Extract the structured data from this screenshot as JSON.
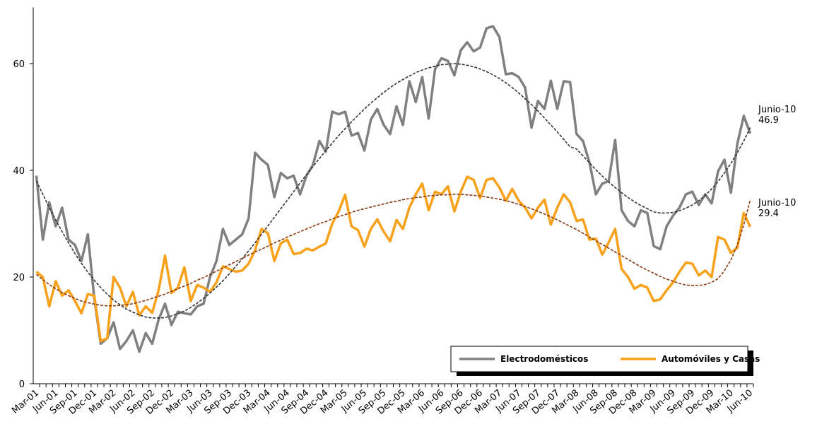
{
  "chart_data": {
    "type": "line",
    "categories": [
      "Mar-01",
      null,
      null,
      "Jun-01",
      null,
      null,
      "Sep-01",
      null,
      null,
      "Dec-01",
      null,
      null,
      "Mar-02",
      null,
      null,
      "Jun-02",
      null,
      null,
      "Sep-02",
      null,
      null,
      "Dec-02",
      null,
      null,
      "Mar-03",
      null,
      null,
      "Jun-03",
      null,
      null,
      "Sep-03",
      null,
      null,
      "Dec-03",
      null,
      null,
      "Mar-04",
      null,
      null,
      "Jun-04",
      null,
      null,
      "Sep-04",
      null,
      null,
      "Dec-04",
      null,
      null,
      "Mar-05",
      null,
      null,
      "Jun-05",
      null,
      null,
      "Sep-05",
      null,
      null,
      "Dec-05",
      null,
      null,
      "Mar-06",
      null,
      null,
      "Jun-06",
      null,
      null,
      "Sep-06",
      null,
      null,
      "Dec-06",
      null,
      null,
      "Mar-07",
      null,
      null,
      "Jun-07",
      null,
      null,
      "Sep-07",
      null,
      null,
      "Dec-07",
      null,
      null,
      "Mar-08",
      null,
      null,
      "Jun-08",
      null,
      null,
      "Sep-08",
      null,
      null,
      "Dec-08",
      null,
      null,
      "Mar-09",
      null,
      null,
      "Jun-09",
      null,
      null,
      "Sep-09",
      null,
      null,
      "Dec-09",
      null,
      null,
      "Mar-10",
      null,
      null,
      "Jun-10"
    ],
    "series": [
      {
        "name": "Electrodomésticos",
        "color": "#808080",
        "values": [
          39,
          27,
          34,
          29.5,
          33,
          27,
          26,
          23,
          28,
          16,
          7.5,
          8.5,
          11.5,
          6.5,
          8,
          10,
          6,
          9.5,
          7.5,
          12,
          15,
          11,
          13.5,
          13.2,
          13,
          14.5,
          15,
          20,
          23,
          29,
          26,
          27,
          28,
          31,
          43.3,
          42,
          41,
          35,
          39.5,
          38.5,
          39,
          35.5,
          39,
          41,
          45.5,
          43.5,
          51,
          50.5,
          51,
          46.5,
          47,
          43.7,
          49.5,
          51.5,
          48.5,
          46.8,
          52,
          48.5,
          56.7,
          52.8,
          57.5,
          49.7,
          59,
          61,
          60.5,
          57.8,
          62.5,
          64,
          62.3,
          63,
          66.6,
          67,
          65,
          58,
          58.2,
          57.5,
          55.5,
          48,
          53,
          51.5,
          56.8,
          51.5,
          56.7,
          56.5,
          46.8,
          45.5,
          41.5,
          35.5,
          37.5,
          38,
          45.7,
          32.5,
          30.5,
          29.5,
          32.5,
          32,
          25.8,
          25.2,
          29.5,
          31.5,
          33,
          35.5,
          36,
          33.5,
          35.5,
          33.8,
          39.8,
          42,
          35.8,
          45,
          50.2,
          46.9
        ]
      },
      {
        "name": "Automóviles y Casas",
        "color": "#f9a11b",
        "values": [
          21,
          20,
          14.5,
          19.2,
          16.5,
          17.5,
          15.5,
          13.2,
          16.8,
          16.5,
          8,
          8.5,
          20,
          18,
          14.5,
          17.2,
          12.8,
          14.5,
          13.3,
          17.5,
          24,
          17,
          18,
          21.8,
          15.5,
          18.5,
          18,
          17.2,
          19,
          22,
          21.5,
          21,
          21.2,
          22.5,
          25,
          29,
          28.2,
          23,
          26.3,
          27,
          24.3,
          24.5,
          25.3,
          25,
          25.7,
          26.3,
          30,
          32.3,
          35.4,
          29.5,
          28.8,
          25.7,
          29,
          30.8,
          28.5,
          26.7,
          30.7,
          29,
          33,
          35.5,
          37.5,
          32.5,
          36,
          35.5,
          37,
          32.3,
          36,
          38.8,
          38.2,
          34.8,
          38.2,
          38.5,
          36.8,
          34.3,
          36.5,
          34.3,
          33,
          31,
          33,
          34.5,
          29.8,
          33,
          35.5,
          34,
          30.5,
          30.8,
          27,
          27.2,
          24.2,
          26.5,
          29,
          21.5,
          20,
          17.8,
          18.5,
          18,
          15.5,
          15.8,
          17.5,
          19,
          21,
          22.7,
          22.5,
          20.3,
          21.2,
          20,
          27.5,
          27,
          24.5,
          25.5,
          32,
          29.4
        ]
      }
    ],
    "trendlines": [
      {
        "color": "#333333",
        "values": [
          38,
          35.5,
          33,
          30.7,
          28.5,
          26.4,
          24.4,
          22.6,
          20.9,
          19.4,
          18,
          16.8,
          15.7,
          14.8,
          14,
          13.4,
          12.9,
          12.5,
          12.3,
          12.3,
          12.4,
          12.7,
          13.1,
          13.6,
          14.3,
          15.1,
          16,
          17,
          18.1,
          19.3,
          20.6,
          22,
          23.4,
          24.9,
          26.4,
          28,
          29.6,
          31.2,
          32.8,
          34.4,
          36,
          37.6,
          39.2,
          40.7,
          42.2,
          43.7,
          45.1,
          46.5,
          47.8,
          49.1,
          50.3,
          51.5,
          52.6,
          53.6,
          54.6,
          55.5,
          56.3,
          57,
          57.7,
          58.3,
          58.8,
          59.2,
          59.5,
          59.8,
          59.9,
          60,
          59.9,
          59.7,
          59.4,
          59,
          58.5,
          57.9,
          57.2,
          56.4,
          55.5,
          54.5,
          53.4,
          52.3,
          51.1,
          49.8,
          48.5,
          47.2,
          45.8,
          44.4,
          44,
          42.7,
          41.4,
          40.1,
          38.9,
          37.8,
          36.8,
          35.8,
          34.9,
          34.1,
          33.4,
          32.8,
          32.2,
          32,
          32,
          32.1,
          32.4,
          32.9,
          33.5,
          34.3,
          35.3,
          36.5,
          37.9,
          39.5,
          41.3,
          43.3,
          45.5,
          48
        ]
      },
      {
        "color": "#8b3a0f",
        "values": [
          20.5,
          19.5,
          18.6,
          17.8,
          17.1,
          16.5,
          16,
          15.5,
          15.2,
          14.9,
          14.7,
          14.6,
          14.6,
          14.7,
          14.8,
          15,
          15.3,
          15.6,
          16,
          16.4,
          16.8,
          17.3,
          17.8,
          18.3,
          18.8,
          19.4,
          19.9,
          20.5,
          21.1,
          21.7,
          22.3,
          22.9,
          23.5,
          24.1,
          24.7,
          25.2,
          25.8,
          26.4,
          26.9,
          27.5,
          28,
          28.5,
          29,
          29.5,
          30,
          30.4,
          30.9,
          31.3,
          31.7,
          32.1,
          32.5,
          32.8,
          33.1,
          33.4,
          33.7,
          34,
          34.2,
          34.5,
          34.7,
          34.9,
          35,
          35.2,
          35.3,
          35.4,
          35.4,
          35.5,
          35.5,
          35.4,
          35.3,
          35.2,
          35,
          34.8,
          34.6,
          34.3,
          34,
          33.6,
          33.2,
          32.8,
          32.3,
          31.8,
          31.3,
          30.7,
          30.1,
          29.5,
          28.9,
          28.2,
          27.5,
          26.8,
          26.1,
          25.4,
          24.7,
          24,
          23.3,
          22.6,
          21.9,
          21.3,
          20.7,
          20.1,
          19.6,
          19.2,
          18.8,
          18.5,
          18.4,
          18.4,
          18.6,
          19,
          19.7,
          21.2,
          23.2,
          26,
          29.8,
          34.4
        ]
      }
    ],
    "annotations": [
      {
        "lines": [
          "Junio-10",
          "46.9"
        ],
        "value": 46.9
      },
      {
        "lines": [
          "Junio-10",
          "29.4"
        ],
        "value": 29.4
      }
    ],
    "ylim": [
      0,
      70
    ],
    "yticks": [
      0,
      20,
      40,
      60
    ],
    "legend": "lower-right"
  }
}
